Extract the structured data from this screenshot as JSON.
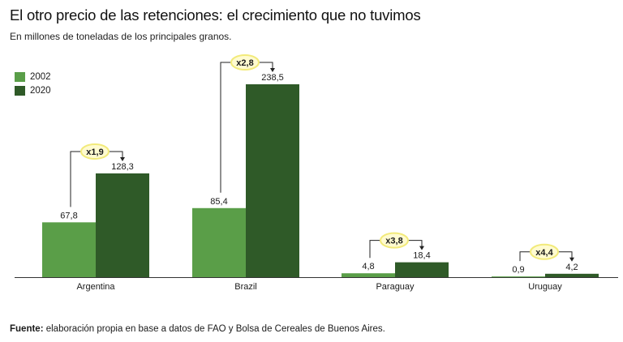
{
  "header": {
    "title": "El otro precio de las retenciones: el crecimiento que no tuvimos",
    "subtitle": "En millones de toneladas de los principales granos."
  },
  "footer": {
    "source_label": "Fuente:",
    "source_text": "elaboración propia en base a datos de FAO y Bolsa de Cereales de Buenos Aires."
  },
  "colors": {
    "series_2002": "#5a9e48",
    "series_2020": "#2f5a28",
    "badge_fill": "#fffbd0",
    "badge_stroke": "#f2ea7a"
  },
  "chart_data": {
    "type": "bar",
    "title": "El otro precio de las retenciones: el crecimiento que no tuvimos",
    "subtitle": "En millones de toneladas de los principales granos.",
    "categories": [
      "Argentina",
      "Brazil",
      "Paraguay",
      "Uruguay"
    ],
    "series": [
      {
        "name": "2002",
        "values": [
          67.8,
          85.4,
          4.8,
          0.9
        ],
        "labels": [
          "67,8",
          "85,4",
          "4,8",
          "0,9"
        ]
      },
      {
        "name": "2020",
        "values": [
          128.3,
          238.5,
          18.4,
          4.2
        ],
        "labels": [
          "128,3",
          "238,5",
          "18,4",
          "4,2"
        ]
      }
    ],
    "growth": [
      "x1,9",
      "x2,8",
      "x3,8",
      "x4,4"
    ],
    "ylim": [
      0,
      238.5
    ],
    "legend": "top-left",
    "grid": false
  }
}
